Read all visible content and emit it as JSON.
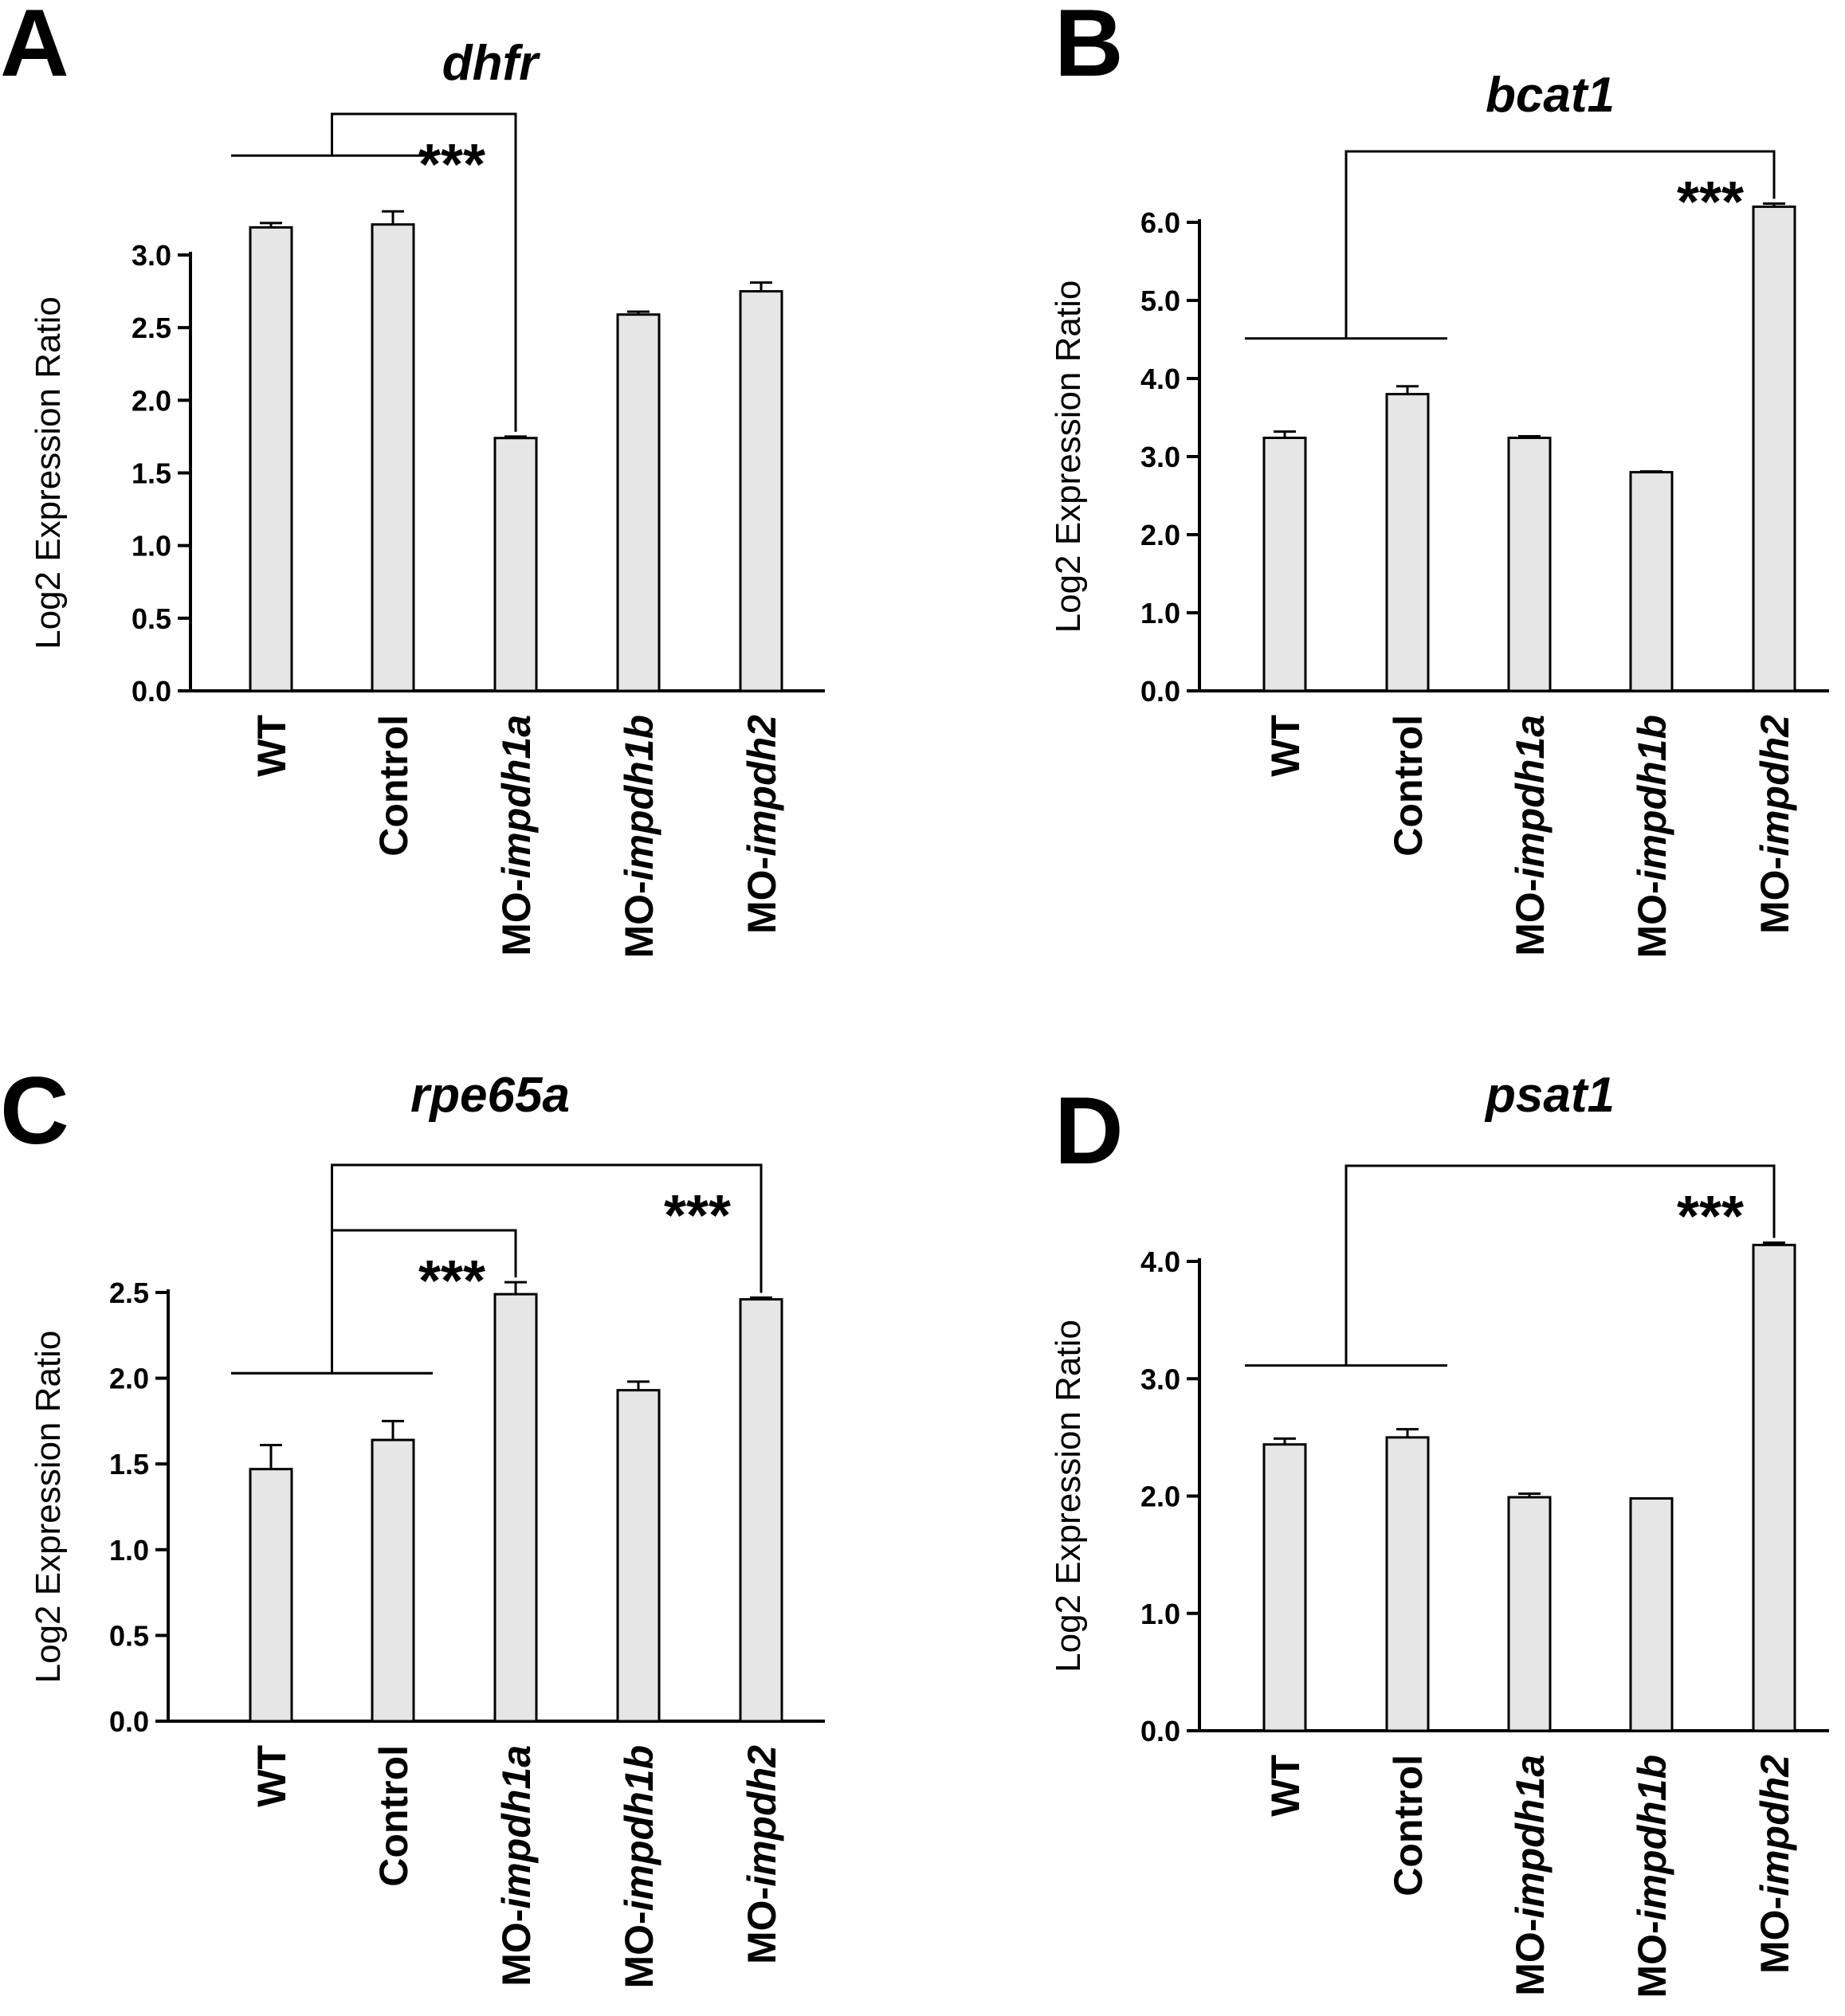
{
  "chart_data": [
    {
      "type": "bar",
      "panel": "A",
      "title": "dhfr",
      "ylabel": "Log2 Expression Ratio",
      "ylim": [
        0,
        3.0
      ],
      "yticks": [
        "0.0",
        "0.5",
        "1.0",
        "1.5",
        "2.0",
        "2.5",
        "3.0"
      ],
      "categories": [
        {
          "prefix": "WT",
          "italic": ""
        },
        {
          "prefix": "Control",
          "italic": ""
        },
        {
          "prefix": "MO-",
          "italic": "impdh1a"
        },
        {
          "prefix": "MO-",
          "italic": "impdh1b"
        },
        {
          "prefix": "MO-",
          "italic": "impdh2"
        }
      ],
      "values": [
        3.19,
        3.21,
        1.74,
        2.59,
        2.75
      ],
      "errors": [
        0.03,
        0.09,
        0.01,
        0.02,
        0.06
      ],
      "significance": [
        {
          "from": [
            0,
            1
          ],
          "to": 2,
          "label": "***",
          "rank": 0
        }
      ]
    },
    {
      "type": "bar",
      "panel": "B",
      "title": "bcat1",
      "ylabel": "Log2 Expression Ratio",
      "ylim": [
        0,
        6.0
      ],
      "yticks": [
        "0.0",
        "1.0",
        "2.0",
        "3.0",
        "4.0",
        "5.0",
        "6.0"
      ],
      "categories": [
        {
          "prefix": "WT",
          "italic": ""
        },
        {
          "prefix": "Control",
          "italic": ""
        },
        {
          "prefix": "MO-",
          "italic": "impdh1a"
        },
        {
          "prefix": "MO-",
          "italic": "impdh1b"
        },
        {
          "prefix": "MO-",
          "italic": "impdh2"
        }
      ],
      "values": [
        3.24,
        3.8,
        3.24,
        2.8,
        6.2
      ],
      "errors": [
        0.08,
        0.1,
        0.02,
        0.01,
        0.04
      ],
      "significance": [
        {
          "from": [
            0,
            1
          ],
          "to": 4,
          "label": "***",
          "rank": 0
        }
      ]
    },
    {
      "type": "bar",
      "panel": "C",
      "title": "rpe65a",
      "ylabel": "Log2 Expression Ratio",
      "ylim": [
        0,
        2.5
      ],
      "yticks": [
        "0.0",
        "0.5",
        "1.0",
        "1.5",
        "2.0",
        "2.5"
      ],
      "categories": [
        {
          "prefix": "WT",
          "italic": ""
        },
        {
          "prefix": "Control",
          "italic": ""
        },
        {
          "prefix": "MO-",
          "italic": "impdh1a"
        },
        {
          "prefix": "MO-",
          "italic": "impdh1b"
        },
        {
          "prefix": "MO-",
          "italic": "impdh2"
        }
      ],
      "values": [
        1.47,
        1.64,
        2.49,
        1.93,
        2.46
      ],
      "errors": [
        0.14,
        0.11,
        0.07,
        0.05,
        0.01
      ],
      "significance": [
        {
          "from": [
            0,
            1
          ],
          "to": 2,
          "label": "***",
          "rank": 0
        },
        {
          "from": [
            0,
            1
          ],
          "to": 4,
          "label": "***",
          "rank": 1
        }
      ]
    },
    {
      "type": "bar",
      "panel": "D",
      "title": "psat1",
      "ylabel": "Log2 Expression Ratio",
      "ylim": [
        0,
        4.0
      ],
      "yticks": [
        "0.0",
        "1.0",
        "2.0",
        "3.0",
        "4.0"
      ],
      "categories": [
        {
          "prefix": "WT",
          "italic": ""
        },
        {
          "prefix": "Control",
          "italic": ""
        },
        {
          "prefix": "MO-",
          "italic": "impdh1a"
        },
        {
          "prefix": "MO-",
          "italic": "impdh1b"
        },
        {
          "prefix": "MO-",
          "italic": "impdh2"
        }
      ],
      "values": [
        2.44,
        2.5,
        1.99,
        1.98,
        4.14
      ],
      "errors": [
        0.05,
        0.07,
        0.03,
        0.0,
        0.02
      ],
      "significance": [
        {
          "from": [
            0,
            1
          ],
          "to": 4,
          "label": "***",
          "rank": 0
        }
      ]
    }
  ]
}
